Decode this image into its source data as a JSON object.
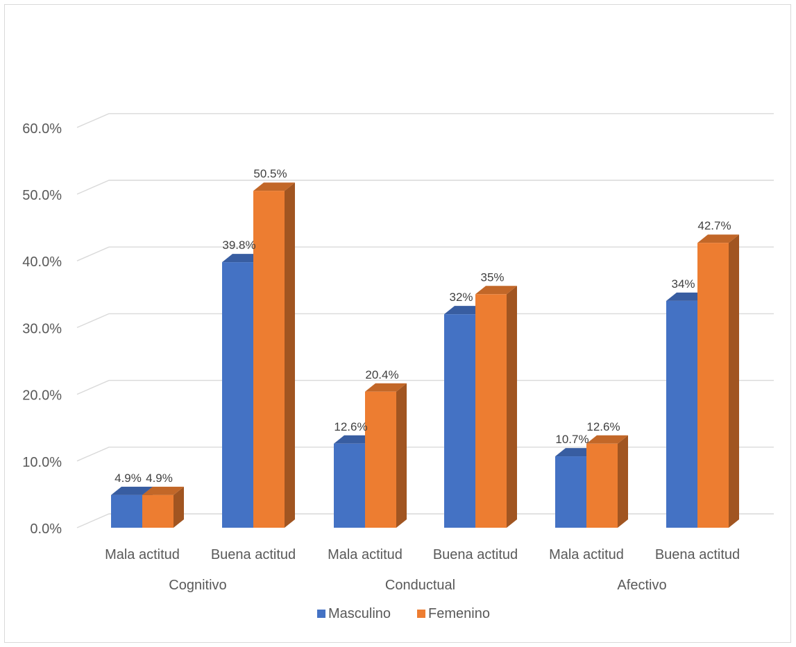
{
  "chart_data": {
    "type": "bar",
    "title": "",
    "xlabel": "",
    "ylabel": "",
    "ylim": [
      0,
      60
    ],
    "yticks": [
      0,
      10,
      20,
      30,
      40,
      50,
      60
    ],
    "ytick_labels": [
      "0.0%",
      "10.0%",
      "20.0%",
      "30.0%",
      "40.0%",
      "50.0%",
      "60.0%"
    ],
    "grid": true,
    "three_d": true,
    "legend_position": "bottom",
    "groups": [
      "Cognitivo",
      "Conductual",
      "Afectivo"
    ],
    "categories": [
      "Mala actitud",
      "Buena actitud",
      "Mala actitud",
      "Buena actitud",
      "Mala actitud",
      "Buena actitud"
    ],
    "series": [
      {
        "name": "Masculino",
        "color": "#4472C4",
        "values": [
          4.9,
          39.8,
          12.6,
          32,
          10.7,
          34
        ],
        "labels": [
          "4.9%",
          "39.8%",
          "12.6%",
          "32%",
          "10.7%",
          "34%"
        ]
      },
      {
        "name": "Femenino",
        "color": "#ED7D31",
        "values": [
          4.9,
          50.5,
          20.4,
          35,
          12.6,
          42.7
        ],
        "labels": [
          "4.9%",
          "50.5%",
          "20.4%",
          "35%",
          "12.6%",
          "42.7%"
        ]
      }
    ]
  }
}
